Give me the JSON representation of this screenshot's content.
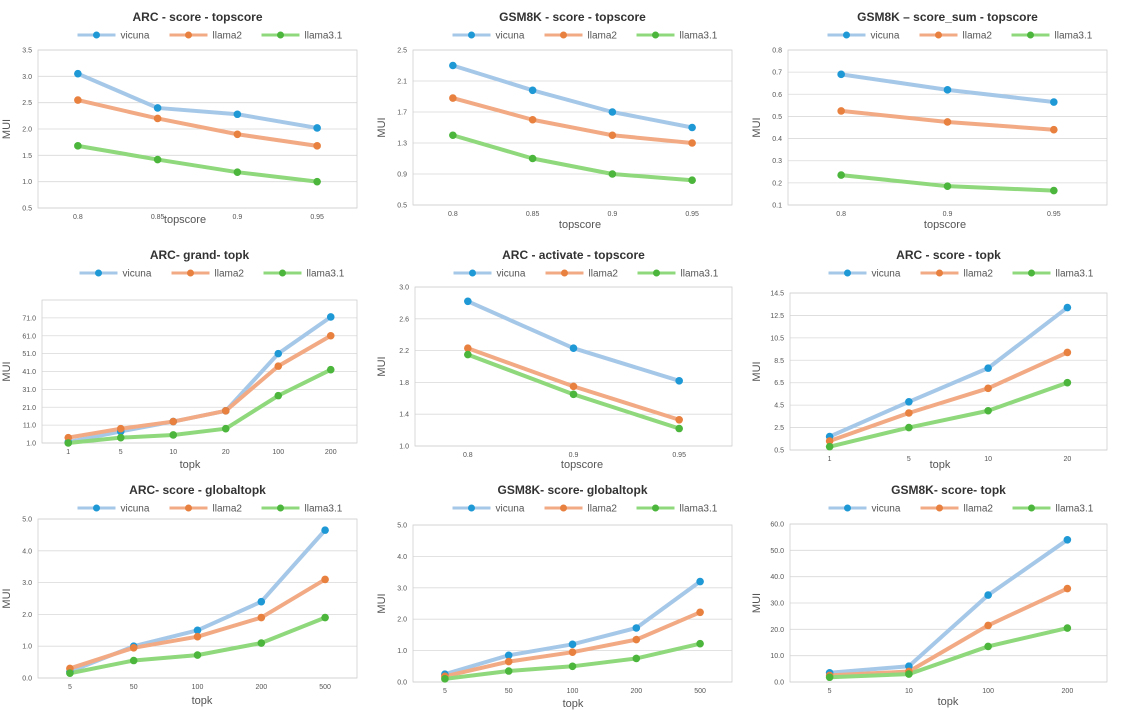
{
  "colors": {
    "vicuna_line": "#a6c8e8",
    "vicuna_dot": "#1f98d6",
    "llama2_line": "#f2aa85",
    "llama2_dot": "#e8803f",
    "llama31_line": "#8fd97c",
    "llama31_dot": "#4bb53c"
  },
  "chart_data": [
    {
      "type": "line",
      "title": "ARC - score - topscore",
      "xlabel": "topscore",
      "ylabel": "MUI",
      "categories": [
        "0.8",
        "0.85",
        "0.9",
        "0.95"
      ],
      "yticks": [
        "0.5",
        "1.0",
        "1.5",
        "2.0",
        "2.5",
        "3.0",
        "3.5"
      ],
      "ylim": [
        0.5,
        3.5
      ],
      "series": [
        {
          "name": "vicuna",
          "values": [
            3.05,
            2.4,
            2.28,
            2.02
          ]
        },
        {
          "name": "llama2",
          "values": [
            2.55,
            2.2,
            1.9,
            1.68
          ]
        },
        {
          "name": "llama3.1",
          "values": [
            1.68,
            1.42,
            1.18,
            1.0
          ]
        }
      ]
    },
    {
      "type": "line",
      "title": "GSM8K - score - topscore",
      "xlabel": "topscore",
      "ylabel": "MUI",
      "categories": [
        "0.8",
        "0.85",
        "0.9",
        "0.95"
      ],
      "yticks": [
        "0.5",
        "0.9",
        "1.3",
        "1.7",
        "2.1",
        "2.5"
      ],
      "ylim": [
        0.5,
        2.5
      ],
      "series": [
        {
          "name": "vicuna",
          "values": [
            2.3,
            1.98,
            1.7,
            1.5
          ]
        },
        {
          "name": "llama2",
          "values": [
            1.88,
            1.6,
            1.4,
            1.3
          ]
        },
        {
          "name": "llama3.1",
          "values": [
            1.4,
            1.1,
            0.9,
            0.82
          ]
        }
      ]
    },
    {
      "type": "line",
      "title": "GSM8K – score_sum - topscore",
      "xlabel": "topscore",
      "ylabel": "MUI",
      "categories": [
        "0.8",
        "0.9",
        "0.95"
      ],
      "yticks": [
        "0.1",
        "0.2",
        "0.3",
        "0.4",
        "0.5",
        "0.6",
        "0.7",
        "0.8"
      ],
      "ylim": [
        0.1,
        0.8
      ],
      "series": [
        {
          "name": "vicuna",
          "values": [
            0.69,
            0.62,
            0.565
          ]
        },
        {
          "name": "llama2",
          "values": [
            0.525,
            0.475,
            0.44
          ]
        },
        {
          "name": "llama3.1",
          "values": [
            0.235,
            0.185,
            0.165
          ]
        }
      ]
    },
    {
      "type": "line",
      "title": "ARC- grand- topk",
      "xlabel": "topk",
      "ylabel": "MUI",
      "categories": [
        "1",
        "5",
        "10",
        "20",
        "100",
        "200"
      ],
      "yticks": [
        "1.0",
        "11.0",
        "21.0",
        "31.0",
        "41.0",
        "51.0",
        "61.0",
        "71.0"
      ],
      "ylim": [
        1.0,
        81.0
      ],
      "series": [
        {
          "name": "vicuna",
          "values": [
            1.5,
            7.5,
            13.0,
            19.0,
            51.0,
            71.5
          ]
        },
        {
          "name": "llama2",
          "values": [
            4.0,
            9.0,
            13.0,
            19.0,
            44.0,
            61.0
          ]
        },
        {
          "name": "llama3.1",
          "values": [
            1.0,
            4.0,
            5.5,
            9.0,
            27.5,
            42.0
          ]
        }
      ]
    },
    {
      "type": "line",
      "title": "ARC - activate - topscore",
      "xlabel": "topscore",
      "ylabel": "MUI",
      "categories": [
        "0.8",
        "0.9",
        "0.95"
      ],
      "yticks": [
        "1.0",
        "1.4",
        "1.8",
        "2.2",
        "2.6",
        "3.0"
      ],
      "ylim": [
        1.0,
        3.0
      ],
      "series": [
        {
          "name": "vicuna",
          "values": [
            2.82,
            2.23,
            1.82
          ]
        },
        {
          "name": "llama2",
          "values": [
            2.23,
            1.75,
            1.33
          ]
        },
        {
          "name": "llama3.1",
          "values": [
            2.15,
            1.65,
            1.22
          ]
        }
      ]
    },
    {
      "type": "line",
      "title": "ARC - score - topk",
      "xlabel": "topk",
      "ylabel": "MUI",
      "categories": [
        "1",
        "5",
        "10",
        "20"
      ],
      "yticks": [
        "0.5",
        "2.5",
        "4.5",
        "6.5",
        "8.5",
        "10.5",
        "12.5",
        "14.5"
      ],
      "ylim": [
        0.5,
        14.5
      ],
      "series": [
        {
          "name": "vicuna",
          "values": [
            1.7,
            4.8,
            7.8,
            13.2
          ]
        },
        {
          "name": "llama2",
          "values": [
            1.3,
            3.8,
            6.0,
            9.2
          ]
        },
        {
          "name": "llama3.1",
          "values": [
            0.8,
            2.5,
            4.0,
            6.5
          ]
        }
      ]
    },
    {
      "type": "line",
      "title": "ARC- score - globaltopk",
      "xlabel": "topk",
      "ylabel": "MUI",
      "categories": [
        "5",
        "50",
        "100",
        "200",
        "500"
      ],
      "yticks": [
        "0.0",
        "1.0",
        "2.0",
        "3.0",
        "4.0",
        "5.0"
      ],
      "ylim": [
        0.0,
        5.0
      ],
      "series": [
        {
          "name": "vicuna",
          "values": [
            0.2,
            1.0,
            1.5,
            2.4,
            4.65
          ]
        },
        {
          "name": "llama2",
          "values": [
            0.3,
            0.95,
            1.3,
            1.9,
            3.1
          ]
        },
        {
          "name": "llama3.1",
          "values": [
            0.15,
            0.55,
            0.72,
            1.1,
            1.9
          ]
        }
      ]
    },
    {
      "type": "line",
      "title": "GSM8K- score- globaltopk",
      "xlabel": "topk",
      "ylabel": "MUI",
      "categories": [
        "5",
        "50",
        "100",
        "200",
        "500"
      ],
      "yticks": [
        "0.0",
        "1.0",
        "2.0",
        "3.0",
        "4.0",
        "5.0"
      ],
      "ylim": [
        0.0,
        5.0
      ],
      "series": [
        {
          "name": "vicuna",
          "values": [
            0.25,
            0.85,
            1.2,
            1.72,
            3.2
          ]
        },
        {
          "name": "llama2",
          "values": [
            0.18,
            0.65,
            0.95,
            1.35,
            2.22
          ]
        },
        {
          "name": "llama3.1",
          "values": [
            0.1,
            0.35,
            0.5,
            0.75,
            1.22
          ]
        }
      ]
    },
    {
      "type": "line",
      "title": "GSM8K- score- topk",
      "xlabel": "topk",
      "ylabel": "MUI",
      "categories": [
        "5",
        "10",
        "100",
        "200"
      ],
      "yticks": [
        "0.0",
        "10.0",
        "20.0",
        "30.0",
        "40.0",
        "50.0",
        "60.0"
      ],
      "ylim": [
        0.0,
        60.0
      ],
      "series": [
        {
          "name": "vicuna",
          "values": [
            3.5,
            6.0,
            33.0,
            54.0
          ]
        },
        {
          "name": "llama2",
          "values": [
            2.5,
            4.0,
            21.5,
            35.5
          ]
        },
        {
          "name": "llama3.1",
          "values": [
            1.8,
            3.0,
            13.5,
            20.5
          ]
        }
      ]
    }
  ]
}
